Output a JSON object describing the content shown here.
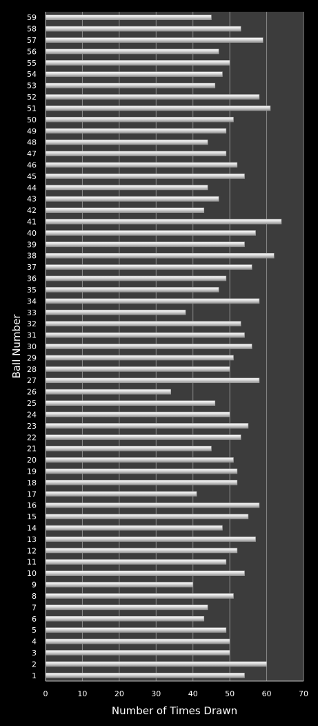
{
  "chart_data": {
    "type": "bar",
    "orientation": "horizontal",
    "title": "",
    "xlabel": "Number of Times Drawn",
    "ylabel": "Ball Number",
    "xlim": [
      0,
      70
    ],
    "xticks": [
      0,
      10,
      20,
      30,
      40,
      50,
      60,
      70
    ],
    "grid": "vertical",
    "legend": "none",
    "colors": {
      "plot_bg": "#3c3c3c",
      "page_bg": "#000000",
      "bar": "#d8d8d8",
      "grid": "#8a8a8a",
      "text": "#ffffff"
    },
    "categories": [
      "1",
      "2",
      "3",
      "4",
      "5",
      "6",
      "7",
      "8",
      "9",
      "10",
      "11",
      "12",
      "13",
      "14",
      "15",
      "16",
      "17",
      "18",
      "19",
      "20",
      "21",
      "22",
      "23",
      "24",
      "25",
      "26",
      "27",
      "28",
      "29",
      "30",
      "31",
      "32",
      "33",
      "34",
      "35",
      "36",
      "37",
      "38",
      "39",
      "40",
      "41",
      "42",
      "43",
      "44",
      "45",
      "46",
      "47",
      "48",
      "49",
      "50",
      "51",
      "52",
      "53",
      "54",
      "55",
      "56",
      "57",
      "58",
      "59"
    ],
    "values": [
      54,
      60,
      50,
      50,
      49,
      43,
      44,
      51,
      40,
      54,
      49,
      52,
      57,
      48,
      55,
      58,
      41,
      52,
      52,
      51,
      45,
      53,
      55,
      50,
      46,
      34,
      58,
      50,
      51,
      56,
      54,
      53,
      38,
      58,
      47,
      49,
      56,
      62,
      54,
      57,
      64,
      43,
      47,
      44,
      54,
      52,
      49,
      44,
      49,
      51,
      61,
      58,
      46,
      48,
      50,
      47,
      59,
      53,
      45
    ]
  }
}
